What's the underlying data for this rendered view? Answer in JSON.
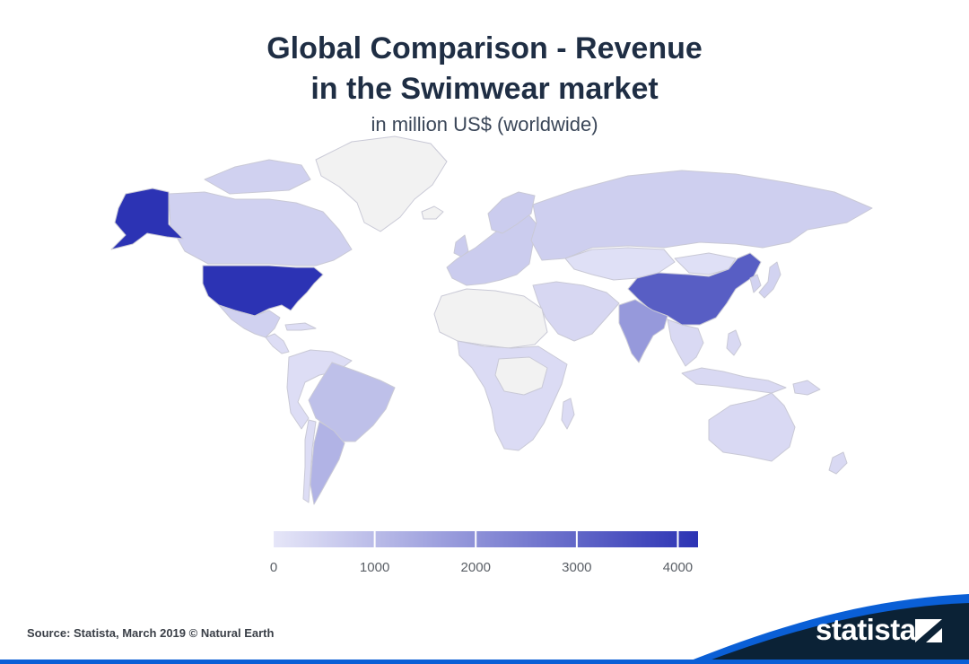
{
  "chart_data": {
    "type": "choropleth-map",
    "title_line1": "Global Comparison - Revenue",
    "title_line2": "in the Swimwear market",
    "subtitle": "in million US$ (worldwide)",
    "unit": "million US$",
    "color_scale": {
      "min": 0,
      "max": 4200,
      "ticks": [
        0,
        1000,
        2000,
        3000,
        4000
      ],
      "tick_labels": [
        "0",
        "1000",
        "2000",
        "3000",
        "4000"
      ],
      "color_low": "#e6e6f8",
      "color_high": "#2c33b4",
      "no_data_color": "#f2f2f2"
    },
    "regions": [
      {
        "name": "United States",
        "value": 4200
      },
      {
        "name": "Alaska (US)",
        "value": 4200
      },
      {
        "name": "China",
        "value": 3200
      },
      {
        "name": "India",
        "value": 1800
      },
      {
        "name": "Brazil",
        "value": 900
      },
      {
        "name": "Argentina",
        "value": 1200
      },
      {
        "name": "Canada",
        "value": 500
      },
      {
        "name": "Mexico",
        "value": 500
      },
      {
        "name": "Russia",
        "value": 550
      },
      {
        "name": "Australia",
        "value": 300
      },
      {
        "name": "Japan",
        "value": 450
      },
      {
        "name": "Western Europe",
        "value": 600
      },
      {
        "name": "Middle East",
        "value": 350
      },
      {
        "name": "Africa",
        "value": 250
      },
      {
        "name": "Southeast Asia",
        "value": 300
      },
      {
        "name": "Central Asia",
        "value": 150
      },
      {
        "name": "Rest of South America",
        "value": 200
      },
      {
        "name": "Greenland",
        "value": null
      },
      {
        "name": "Iceland",
        "value": null
      },
      {
        "name": "Sahara region",
        "value": null
      },
      {
        "name": "Central Africa",
        "value": null
      }
    ]
  },
  "footer": {
    "source": "Source: Statista, March 2019 © Natural Earth",
    "brand": "statista"
  },
  "colors": {
    "title": "#1f2e44",
    "border": "#c9c9d6",
    "brand_dark": "#0b2236",
    "brand_blue": "#0a5fd6"
  }
}
